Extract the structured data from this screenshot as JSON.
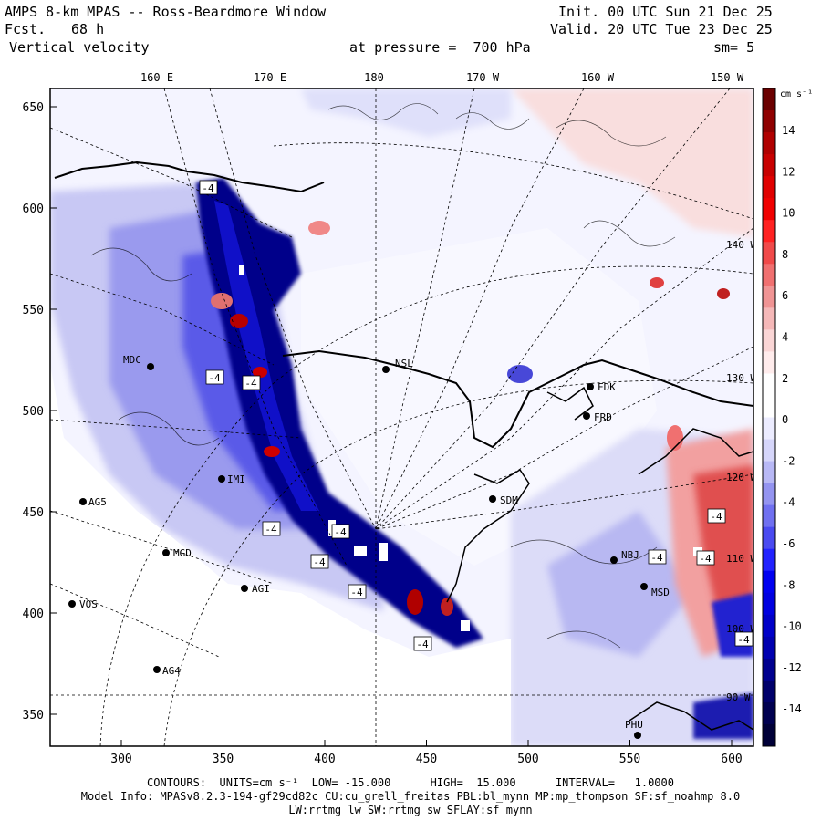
{
  "header": {
    "title": "AMPS 8-km MPAS -- Ross-Beardmore Window",
    "fcst_label": "Fcst.",
    "fcst_value": "68 h",
    "field": "Vertical velocity",
    "init": "Init. 00 UTC Sun 21 Dec 25",
    "valid": "Valid. 20 UTC Tue 23 Dec 25",
    "pressure": "at pressure =  700 hPa",
    "smooth": "sm= 5"
  },
  "axes": {
    "top_ticks": [
      "160 E",
      "170 E",
      "180",
      "170 W",
      "160 W",
      "150 W"
    ],
    "x_ticks": [
      "300",
      "350",
      "400",
      "450",
      "500",
      "550",
      "600"
    ],
    "y_ticks": [
      "650",
      "600",
      "550",
      "500",
      "450",
      "400",
      "350"
    ]
  },
  "colorbar": {
    "unit": "cm s⁻¹",
    "labels": [
      "14",
      "12",
      "10",
      "8",
      "6",
      "4",
      "2",
      "0",
      "-2",
      "-4",
      "-6",
      "-8",
      "-10",
      "-12",
      "-14"
    ],
    "colors": [
      "#6b0000",
      "#8f0000",
      "#b00000",
      "#c80000",
      "#e00000",
      "#f00000",
      "#ff2222",
      "#f04a4a",
      "#f07070",
      "#f09494",
      "#f5b8b8",
      "#fad6d6",
      "#ffecec",
      "#ffffff",
      "#ffffff",
      "#ececff",
      "#d6d6fa",
      "#b8b8f5",
      "#9494f0",
      "#7070f0",
      "#4a4af0",
      "#2222ff",
      "#0000f0",
      "#0000e0",
      "#0000c8",
      "#0000b0",
      "#00008f",
      "#00006b",
      "#000050",
      "#000038"
    ]
  },
  "map_labels": {
    "lon_inner": [
      "140 W",
      "130 W",
      "120 W",
      "110 W",
      "100 W",
      "90 W"
    ],
    "stations": [
      "MDC",
      "NSL",
      "FDK",
      "FRD",
      "SDM",
      "IMI",
      "AG5",
      "MGD",
      "AGI",
      "VOS",
      "AG4",
      "NBJ",
      "MSD",
      "PHU"
    ],
    "contour_tags": [
      "-4",
      "-4",
      "-4",
      "-4",
      "-4",
      "-4",
      "-4",
      "-4",
      "-4",
      "-4",
      "-4",
      "-4"
    ]
  },
  "footer": {
    "line1": "CONTOURS:  UNITS=cm s⁻¹  LOW= -15.000      HIGH=  15.000      INTERVAL=   1.0000",
    "line2": "Model Info: MPASv8.2.3-194-gf29cd82c CU:cu_grell_freitas PBL:bl_mynn MP:mp_thompson SF:sf_noahmp 8.0",
    "line3": "LW:rrtmg_lw SW:rrtmg_sw SFLAY:sf_mynn"
  }
}
